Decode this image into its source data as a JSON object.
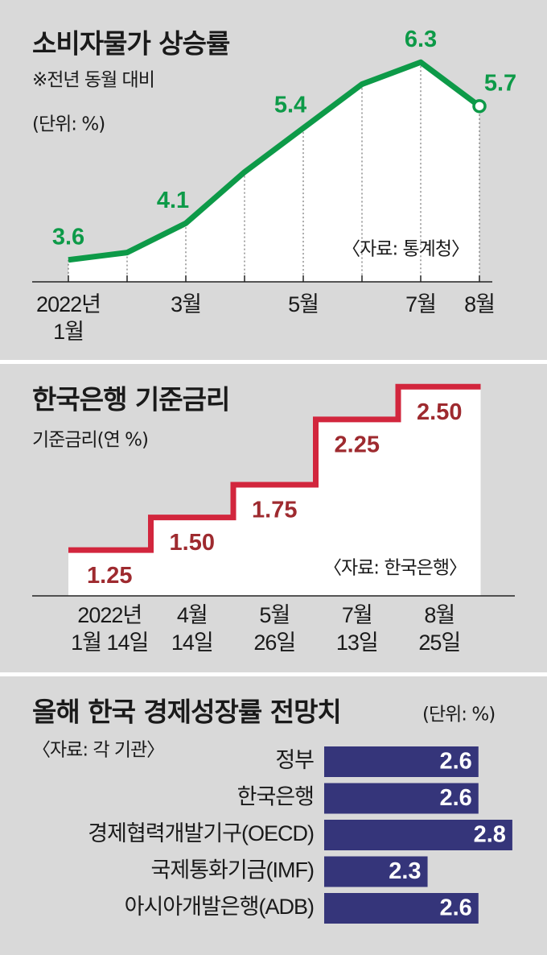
{
  "chart_data": [
    {
      "type": "line",
      "title": "소비자물가 상승률",
      "subtitle": "※전년 동월 대비",
      "unit": "(단위: %)",
      "source": "〈자료: 통계청〉",
      "categories": [
        "2022년\n1월",
        null,
        "3월",
        null,
        "5월",
        null,
        "7월",
        "8월"
      ],
      "values": [
        3.6,
        3.7,
        4.1,
        4.8,
        5.4,
        6.0,
        6.3,
        5.7
      ],
      "value_labels": [
        "3.6",
        null,
        "4.1",
        null,
        "5.4",
        null,
        "6.3",
        "5.7"
      ],
      "color": "#0d9a48",
      "ylim": [
        3.3,
        6.6
      ]
    },
    {
      "type": "step",
      "title": "한국은행 기준금리",
      "subtitle": "기준금리(연 %)",
      "source": "〈자료: 한국은행〉",
      "categories": [
        "2022년\n1월 14일",
        "4월\n14일",
        "5월\n26일",
        "7월\n13일",
        "8월\n25일"
      ],
      "values": [
        1.25,
        1.5,
        1.75,
        2.25,
        2.5
      ],
      "value_labels": [
        "1.25",
        "1.50",
        "1.75",
        "2.25",
        "2.50"
      ],
      "color": "#d2263d",
      "ylim": [
        0.9,
        2.6
      ]
    },
    {
      "type": "hbar",
      "title": "올해 한국 경제성장률 전망치",
      "unit": "(단위: %)",
      "source": "〈자료: 각 기관〉",
      "categories": [
        "정부",
        "한국은행",
        "경제협력개발기구(OECD)",
        "국제통화기금(IMF)",
        "아시아개발은행(ADB)"
      ],
      "values": [
        2.6,
        2.6,
        2.8,
        2.3,
        2.6
      ],
      "color": "#35357a",
      "xlim": [
        1.69,
        2.9
      ]
    }
  ]
}
